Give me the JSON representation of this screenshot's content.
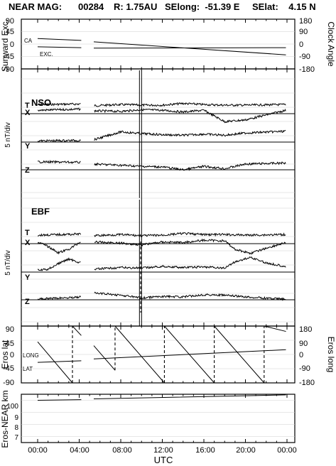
{
  "header": {
    "mission": "NEAR MAG:",
    "orbit": "00284",
    "distance": "R: 1.75AU",
    "selong": "SElong:  -51.39 E",
    "selat": "SElat:    4.15 N"
  },
  "panels": [
    {
      "id": "sunward",
      "left_label": "Sunward Exc.",
      "right_label": "Clock Angle",
      "left_ticks": [
        "90",
        "45",
        "0",
        "-45",
        "-90"
      ],
      "right_ticks": [
        "180",
        "90",
        "0",
        "-90",
        "-180"
      ],
      "trace_labels": [
        "CA",
        "EXC."
      ]
    },
    {
      "id": "nso",
      "title": "NSO",
      "left_label": "5 nT/div",
      "trace_labels": [
        "T",
        "X",
        "Y",
        "Z"
      ]
    },
    {
      "id": "ebf",
      "title": "EBF",
      "left_label": "5 nT/div",
      "trace_labels": [
        "T",
        "X",
        "Y",
        "Z"
      ]
    },
    {
      "id": "eros",
      "left_label": "Eros lat",
      "right_label": "Eros long",
      "left_ticks": [
        "90",
        "45",
        "0",
        "-45",
        "-90"
      ],
      "right_ticks": [
        "180",
        "90",
        "0",
        "-90",
        "-180"
      ],
      "trace_labels": [
        "LONG",
        "LAT"
      ]
    },
    {
      "id": "range",
      "left_label": "Eros-NEAR km",
      "left_ticks": [
        "100",
        "9",
        "8",
        "7"
      ]
    }
  ],
  "x_axis": {
    "label": "UTC",
    "ticks": [
      "00:00",
      "04:00",
      "08:00",
      "12:00",
      "16:00",
      "20:00",
      "00:00"
    ]
  },
  "chart_data": [
    {
      "type": "line",
      "panel": "sunward",
      "x_unit": "hours UTC",
      "xlim": [
        0,
        24
      ],
      "ylim": [
        -90,
        90
      ],
      "y2lim": [
        -180,
        180
      ],
      "data_gap": [
        4.2,
        5.4
      ],
      "series": [
        {
          "name": "CA",
          "axis": "right",
          "x": [
            0.0,
            4.2,
            5.4,
            23.9
          ],
          "y": [
            40,
            26,
            16,
            -78
          ]
        },
        {
          "name": "EXC.",
          "axis": "left",
          "x": [
            0.0,
            4.2,
            5.4,
            23.9
          ],
          "y": [
            -10,
            -13,
            -15,
            -13
          ]
        }
      ]
    },
    {
      "type": "line",
      "panel": "nso",
      "x_unit": "hours UTC",
      "xlim": [
        0,
        24
      ],
      "y_unit": "5 nT/div",
      "data_gap": [
        4.2,
        5.4
      ],
      "spike_at": 9.8,
      "series": [
        {
          "name": "T",
          "x": [
            0,
            4.2,
            5.4,
            8,
            10,
            12,
            14,
            16,
            18,
            20,
            23.9
          ],
          "y": [
            1.6,
            1.7,
            1.4,
            1.6,
            1.5,
            1.5,
            1.8,
            1.6,
            1.5,
            1.5,
            1.6
          ]
        },
        {
          "name": "X",
          "x": [
            0,
            4.2,
            5.4,
            8,
            10,
            12,
            14,
            16,
            18,
            20,
            23.9
          ],
          "y": [
            0.6,
            0.8,
            0.5,
            0.4,
            0.7,
            0.6,
            0.3,
            0.6,
            -1.4,
            -1.1,
            0.6
          ]
        },
        {
          "name": "Y",
          "x": [
            0,
            4.2,
            5.4,
            8,
            10,
            12,
            14,
            16,
            18,
            20,
            23.9
          ],
          "y": [
            0.2,
            0.3,
            0.4,
            1.8,
            1.5,
            1.3,
            1.2,
            1.4,
            1.2,
            1.6,
            1.9
          ]
        },
        {
          "name": "Z",
          "x": [
            0,
            4.2,
            5.4,
            8,
            10,
            12,
            14,
            16,
            18,
            20,
            23.9
          ],
          "y": [
            1.4,
            1.3,
            1.0,
            0.8,
            0.6,
            0.5,
            0.0,
            0.6,
            0.2,
            1.0,
            1.2
          ]
        }
      ]
    },
    {
      "type": "line",
      "panel": "ebf",
      "x_unit": "hours UTC",
      "xlim": [
        0,
        24
      ],
      "y_unit": "5 nT/div",
      "data_gap": [
        4.2,
        5.4
      ],
      "spike_at": 9.8,
      "series": [
        {
          "name": "T",
          "x": [
            0,
            4.2,
            5.4,
            8,
            10,
            12,
            14,
            16,
            18,
            20,
            23.9
          ],
          "y": [
            1.5,
            1.7,
            1.4,
            1.6,
            1.4,
            1.5,
            1.8,
            1.6,
            1.6,
            1.5,
            1.6
          ]
        },
        {
          "name": "X",
          "x": [
            0,
            1,
            2,
            3,
            4.2,
            5.4,
            8,
            10,
            12,
            14,
            16,
            18,
            19,
            20.5,
            22,
            23.9
          ],
          "y": [
            0.3,
            -0.5,
            -1.6,
            -1.0,
            0.4,
            0.3,
            0.1,
            -0.2,
            0.3,
            0.2,
            0.6,
            0.5,
            -1.0,
            -1.7,
            -0.8,
            0.2
          ]
        },
        {
          "name": "Y",
          "x": [
            0,
            1,
            2,
            3,
            4.2,
            5.4,
            8,
            10,
            12,
            14,
            16,
            18,
            19,
            20.5,
            22,
            23.9
          ],
          "y": [
            0.3,
            0.5,
            1.5,
            2.3,
            1.6,
            0.5,
            0.8,
            0.7,
            1.0,
            0.8,
            0.9,
            0.7,
            1.8,
            2.6,
            1.6,
            1.0
          ]
        },
        {
          "name": "Z",
          "x": [
            0,
            4.2,
            5.4,
            8,
            10,
            12,
            14,
            16,
            18,
            20,
            23.9
          ],
          "y": [
            0.1,
            0.5,
            1.2,
            0.8,
            0.3,
            0.6,
            0.5,
            0.9,
            0.8,
            0.5,
            0.1
          ]
        }
      ]
    },
    {
      "type": "line",
      "panel": "eros",
      "x_unit": "hours UTC",
      "xlim": [
        0,
        24
      ],
      "ylim": [
        -90,
        90
      ],
      "y2lim": [
        -180,
        180
      ],
      "data_gap": [
        4.2,
        5.4
      ],
      "series": [
        {
          "name": "LAT",
          "axis": "left",
          "x": [
            0,
            4.2,
            5.4,
            23.9
          ],
          "y": [
            -25,
            -20,
            -14,
            15
          ]
        },
        {
          "name": "LONG",
          "axis": "right",
          "x": [
            0,
            3.35,
            3.35,
            4.2,
            5.4,
            7.45,
            7.45,
            12.2,
            12.2,
            17.0,
            17.0,
            21.8,
            21.8,
            23.9
          ],
          "y": [
            80,
            -180,
            180,
            120,
            56,
            -100,
            180,
            -180,
            180,
            -180,
            180,
            -180,
            180,
            146
          ]
        }
      ]
    },
    {
      "type": "line",
      "panel": "range",
      "x_unit": "hours UTC",
      "xlim": [
        0,
        24
      ],
      "ylim": [
        6.5,
        10.5
      ],
      "series": [
        {
          "name": "Eros-NEAR km",
          "x": [
            0,
            4.2,
            5.4,
            23.9
          ],
          "y": [
            10.0,
            10.05,
            10.12,
            10.45
          ]
        }
      ]
    }
  ]
}
